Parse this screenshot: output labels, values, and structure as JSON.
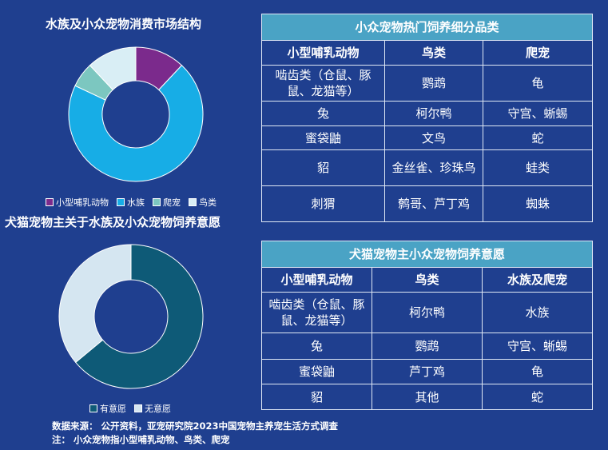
{
  "chart_data": [
    {
      "type": "pie",
      "title": "水族及小众宠物消费市场结构",
      "categories": [
        "小型哺乳动物",
        "水族",
        "爬宠",
        "鸟类"
      ],
      "values": [
        12,
        70,
        6,
        12
      ],
      "colors": [
        "#7b2a8c",
        "#17ade6",
        "#7cc7c0",
        "#d9eef5"
      ]
    },
    {
      "type": "pie",
      "title": "犬猫宠物主关于水族及小众宠物饲养意愿",
      "categories": [
        "有意愿",
        "无意愿"
      ],
      "values": [
        64,
        36
      ],
      "colors": [
        "#0e5a77",
        "#d5e6f1"
      ]
    }
  ],
  "table1": {
    "title": "小众宠物热门饲养细分品类",
    "headers": [
      "小型哺乳动物",
      "鸟类",
      "爬宠"
    ],
    "rows": [
      [
        "啮齿类（仓鼠、豚鼠、龙猫等）",
        "鹦鹉",
        "龟"
      ],
      [
        "兔",
        "柯尔鸭",
        "守宫、蜥蜴"
      ],
      [
        "蜜袋鼬",
        "文鸟",
        "蛇"
      ],
      [
        "貂",
        "金丝雀、珍珠鸟",
        "蛙类"
      ],
      [
        "刺猬",
        "鹩哥、芦丁鸡",
        "蜘蛛"
      ]
    ]
  },
  "table2": {
    "title": "犬猫宠物主小众宠物饲养意愿",
    "headers": [
      "小型哺乳动物",
      "鸟类",
      "水族及爬宠"
    ],
    "rows": [
      [
        "啮齿类（仓鼠、豚鼠、龙猫等）",
        "柯尔鸭",
        "水族"
      ],
      [
        "兔",
        "鹦鹉",
        "守宫、蜥蜴"
      ],
      [
        "蜜袋鼬",
        "芦丁鸡",
        "龟"
      ],
      [
        "貂",
        "其他",
        "蛇"
      ]
    ]
  },
  "footer": {
    "source": "数据来源： 公开资料，亚宠研究院2023中国宠物主养宠生活方式调查",
    "note": "注： 小众宠物指小型哺乳动物、鸟类、爬宠"
  }
}
